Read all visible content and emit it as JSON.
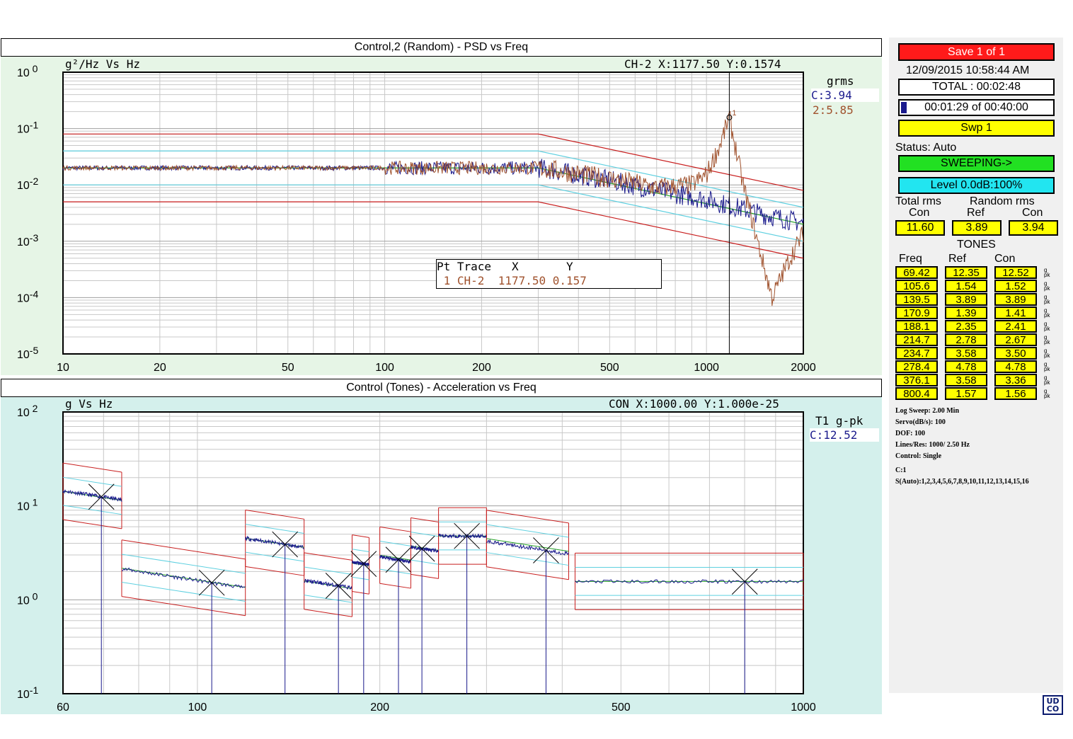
{
  "top_chart": {
    "title": "Control,2 (Random) - PSD vs  Freq",
    "y_label": "g²/Hz Vs Hz",
    "cursor": "CH-2 X:1177.50 Y:0.1574",
    "legend_title": "grms",
    "legend_entries": [
      {
        "text": "C:3.94",
        "color": "#1a1a8c"
      },
      {
        "text": "2:5.85",
        "color": "#a0522d"
      }
    ],
    "y_ticks": [
      "10 0",
      "10-1",
      "10-2",
      "10-3",
      "10-4",
      "10-5"
    ],
    "x_ticks": [
      "10",
      "20",
      "50",
      "100",
      "200",
      "500",
      "1000",
      "2000"
    ],
    "marker_label": "1",
    "table": {
      "header": "Pt Trace   X       Y",
      "row": " 1 CH-2  1177.50 0.157"
    }
  },
  "bottom_chart": {
    "title": "Control (Tones) - Acceleration vs  Freq",
    "y_label": "g Vs Hz",
    "cursor": "CON X:1000.00 Y:1.000e-25",
    "legend_title": "T1 g-pk",
    "legend_entries": [
      {
        "text": "C:12.52",
        "color": "#1a1a8c"
      }
    ],
    "y_ticks": [
      "10 2",
      "10 1",
      "10 0",
      "10-1"
    ],
    "x_ticks": [
      "60",
      "100",
      "200",
      "500",
      "1000"
    ]
  },
  "chart_data": [
    {
      "type": "line",
      "title": "Control,2 (Random) - PSD vs  Freq",
      "xlabel": "Hz",
      "ylabel": "g²/Hz",
      "x_scale": "log",
      "y_scale": "log",
      "xlim": [
        10,
        2000
      ],
      "ylim": [
        1e-05,
        1
      ],
      "grid": true,
      "legend_placement": "right",
      "profile_breakpoints_x": [
        10,
        300,
        2000
      ],
      "series": [
        {
          "name": "C",
          "x": [
            10,
            20,
            50,
            100,
            200,
            300,
            500,
            700,
            1000,
            1500,
            2000
          ],
          "y": [
            0.02,
            0.02,
            0.02,
            0.02,
            0.02,
            0.02,
            0.012,
            0.008,
            0.0055,
            0.003,
            0.0021
          ]
        },
        {
          "name": "2",
          "x": [
            10,
            20,
            50,
            100,
            200,
            300,
            500,
            700,
            900,
            1000,
            1100,
            1177.5,
            1300,
            1500,
            1600,
            1800,
            2000
          ],
          "y": [
            0.02,
            0.02,
            0.02,
            0.02,
            0.02,
            0.02,
            0.013,
            0.009,
            0.01,
            0.015,
            0.05,
            0.1574,
            0.01,
            0.0004,
            0.0001,
            0.00045,
            0.0014
          ]
        }
      ],
      "profile_lines": [
        {
          "name": "abort_high",
          "x": [
            10,
            300,
            2000
          ],
          "y": [
            0.08,
            0.08,
            0.008
          ]
        },
        {
          "name": "alarm_high",
          "x": [
            10,
            300,
            2000
          ],
          "y": [
            0.04,
            0.04,
            0.004
          ]
        },
        {
          "name": "reference",
          "x": [
            10,
            300,
            2000
          ],
          "y": [
            0.02,
            0.02,
            0.002
          ]
        },
        {
          "name": "alarm_low",
          "x": [
            10,
            300,
            2000
          ],
          "y": [
            0.01,
            0.01,
            0.001
          ]
        },
        {
          "name": "abort_low",
          "x": [
            10,
            300,
            2000
          ],
          "y": [
            0.005,
            0.005,
            0.0005
          ]
        }
      ],
      "cursor": {
        "x": 1177.5,
        "y": 0.1574
      }
    },
    {
      "type": "line",
      "title": "Control (Tones) - Acceleration vs  Freq",
      "xlabel": "Hz",
      "ylabel": "g",
      "x_scale": "log",
      "y_scale": "log",
      "xlim": [
        60,
        1000
      ],
      "ylim": [
        0.1,
        100
      ],
      "grid": true,
      "legend_placement": "right",
      "tones": [
        {
          "freq": 69.42,
          "ref": 12.35,
          "con": 12.52,
          "band": [
            60,
            75
          ]
        },
        {
          "freq": 105.6,
          "ref": 1.54,
          "con": 1.52,
          "band": [
            75,
            120
          ]
        },
        {
          "freq": 139.5,
          "ref": 3.89,
          "con": 3.89,
          "band": [
            120,
            150
          ]
        },
        {
          "freq": 170.9,
          "ref": 1.39,
          "con": 1.41,
          "band": [
            150,
            180
          ]
        },
        {
          "freq": 188.1,
          "ref": 2.35,
          "con": 2.41,
          "band": [
            180,
            192
          ]
        },
        {
          "freq": 214.7,
          "ref": 2.78,
          "con": 2.67,
          "band": [
            200,
            225
          ]
        },
        {
          "freq": 234.7,
          "ref": 3.58,
          "con": 3.5,
          "band": [
            225,
            250
          ]
        },
        {
          "freq": 278.4,
          "ref": 4.78,
          "con": 4.78,
          "band": [
            250,
            300
          ]
        },
        {
          "freq": 376.1,
          "ref": 3.58,
          "con": 3.36,
          "band": [
            300,
            410
          ]
        },
        {
          "freq": 800.4,
          "ref": 1.57,
          "con": 1.56,
          "band": [
            420,
            1000
          ]
        }
      ]
    }
  ],
  "side_panel": {
    "save_label": "Save   1 of   1",
    "datetime": "12/09/2015  10:58:44 AM",
    "total": "TOTAL : 00:02:48",
    "elapsed": "00:01:29 of 00:40:00",
    "elapsed_fraction": 0.0371,
    "sweep": "Swp    1",
    "status": "Status: Auto",
    "sweeping": "SWEEPING->",
    "level": "Level 0.0dB:100%",
    "total_rms_label": "Total rms",
    "random_rms_label": "Random rms",
    "con_label": "Con",
    "ref_label": "Ref",
    "total_con": "11.60",
    "random_ref": "3.89",
    "random_con": "3.94",
    "tones_label": "TONES",
    "freq_header": "Freq",
    "ref_header": "Ref",
    "con_header": "Con",
    "tone_unit": "g pk",
    "tone_rows": [
      {
        "freq": "69.42",
        "ref": "12.35",
        "con": "12.52"
      },
      {
        "freq": "105.6",
        "ref": "1.54",
        "con": "1.52"
      },
      {
        "freq": "139.5",
        "ref": "3.89",
        "con": "3.89"
      },
      {
        "freq": "170.9",
        "ref": "1.39",
        "con": "1.41"
      },
      {
        "freq": "188.1",
        "ref": "2.35",
        "con": "2.41"
      },
      {
        "freq": "214.7",
        "ref": "2.78",
        "con": "2.67"
      },
      {
        "freq": "234.7",
        "ref": "3.58",
        "con": "3.50"
      },
      {
        "freq": "278.4",
        "ref": "4.78",
        "con": "4.78"
      },
      {
        "freq": "376.1",
        "ref": "3.58",
        "con": "3.36"
      },
      {
        "freq": "800.4",
        "ref": "1.57",
        "con": "1.56"
      }
    ],
    "info_lines": [
      "Log Sweep: 2.00 Min",
      "Servo(dB/s): 100",
      "DOF: 100",
      "Lines/Res: 1000/ 2.50 Hz",
      "Control: Single",
      "C:1",
      "S(Auto):1,2,3,4,5,6,7,8,9,10,11,12,13,14,15,16"
    ],
    "logo": "UDCO"
  },
  "colors": {
    "top_bg": "#e6f5e6",
    "bottom_bg": "#d4f0ec",
    "abort": "#c81e1e",
    "alarm": "#5fd0e0",
    "reference": "#22a022",
    "control": "#1a1a8c",
    "channel2": "#a0522d",
    "save": "#ff1a1a",
    "sweeping": "#22e022",
    "level": "#22e5f0",
    "value": "#ffff00"
  }
}
